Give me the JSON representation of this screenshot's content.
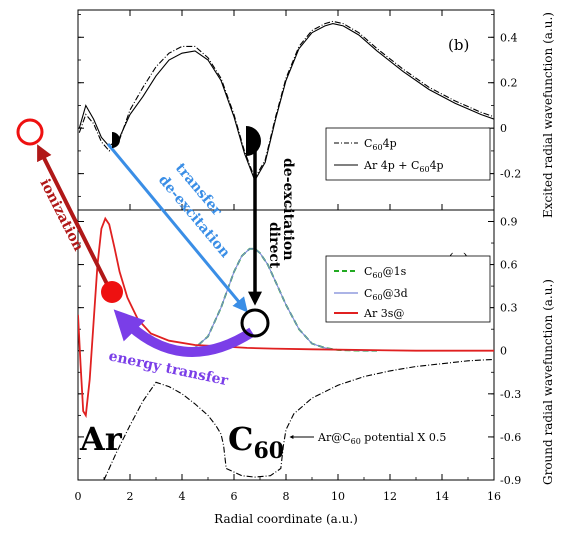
{
  "chart_data": [
    {
      "panel": "(b)",
      "type": "line",
      "xlabel": "Radial coordinate (a.u.)",
      "ylabel": "Excited radial wavefunction (a.u.)",
      "xlim": [
        0,
        16
      ],
      "ylim": [
        -0.36,
        0.52
      ],
      "yticks": [
        -0.2,
        0,
        0.2,
        0.4
      ],
      "ytick_labels": [
        "-0.2",
        "0",
        "0.2",
        "0.4"
      ],
      "legend_position": "center-right",
      "series": [
        {
          "name": "C60 4p",
          "legend_main": "C",
          "legend_sub": "60",
          "legend_rest": "4p",
          "style": "dash-dot",
          "color": "#000000",
          "x": [
            0.05,
            0.3,
            0.6,
            0.9,
            1.2,
            1.6,
            2.0,
            2.5,
            3.0,
            3.5,
            4.0,
            4.5,
            5.0,
            5.5,
            6.0,
            6.4,
            6.8,
            7.2,
            7.6,
            8.0,
            8.5,
            9.0,
            9.5,
            9.8,
            10.2,
            10.8,
            11.5,
            12.5,
            13.5,
            14.5,
            15.5,
            16.0
          ],
          "y": [
            -0.02,
            0.06,
            0.02,
            -0.06,
            -0.1,
            -0.05,
            0.08,
            0.18,
            0.27,
            0.33,
            0.36,
            0.36,
            0.31,
            0.22,
            0.06,
            -0.1,
            -0.22,
            -0.14,
            0.05,
            0.22,
            0.36,
            0.43,
            0.46,
            0.47,
            0.46,
            0.42,
            0.35,
            0.26,
            0.18,
            0.12,
            0.07,
            0.05
          ]
        },
        {
          "name": "Ar 4p + C60 4p",
          "legend_main": "Ar 4p + C",
          "legend_sub": "60",
          "legend_rest": "4p",
          "style": "solid",
          "color": "#000000",
          "x": [
            0.05,
            0.3,
            0.6,
            0.9,
            1.2,
            1.6,
            2.0,
            2.5,
            3.0,
            3.5,
            4.0,
            4.5,
            5.0,
            5.5,
            6.0,
            6.4,
            6.8,
            7.2,
            7.6,
            8.0,
            8.5,
            9.0,
            9.5,
            9.8,
            10.2,
            10.8,
            11.5,
            12.5,
            13.5,
            14.5,
            15.5,
            16.0
          ],
          "y": [
            0.0,
            0.1,
            0.04,
            -0.04,
            -0.08,
            -0.04,
            0.06,
            0.14,
            0.23,
            0.3,
            0.33,
            0.34,
            0.3,
            0.21,
            0.05,
            -0.11,
            -0.23,
            -0.15,
            0.04,
            0.21,
            0.35,
            0.42,
            0.45,
            0.46,
            0.45,
            0.41,
            0.34,
            0.25,
            0.17,
            0.11,
            0.06,
            0.04
          ]
        }
      ]
    },
    {
      "panel": "(a)",
      "type": "line",
      "xlabel": "Radial coordinate (a.u.)",
      "ylabel": "Ground radial wavefunction (a.u.)",
      "xlim": [
        0,
        16
      ],
      "ylim": [
        -0.9,
        0.98
      ],
      "yticks": [
        -0.9,
        -0.6,
        -0.3,
        0,
        0.3,
        0.6,
        0.9
      ],
      "ytick_labels": [
        "-0.9",
        "-0.6",
        "-0.3",
        "0",
        "0.3",
        "0.6",
        "0.9"
      ],
      "xticks": [
        0,
        2,
        4,
        6,
        8,
        10,
        12,
        14,
        16
      ],
      "xtick_labels": [
        "0",
        "2",
        "4",
        "6",
        "8",
        "10",
        "12",
        "14",
        "16"
      ],
      "legend_position": "center-right",
      "series": [
        {
          "name": "C60@1s",
          "legend_main": "C",
          "legend_sub": "60",
          "legend_rest": "@1s",
          "style": "dashed",
          "color": "#22aa22",
          "x": [
            4.0,
            4.5,
            5.0,
            5.5,
            6.0,
            6.3,
            6.6,
            6.8,
            7.0,
            7.3,
            7.6,
            8.0,
            8.5,
            9.0,
            9.5,
            10.0,
            11.0,
            11.5
          ],
          "y": [
            0.0,
            0.02,
            0.1,
            0.3,
            0.55,
            0.66,
            0.71,
            0.71,
            0.68,
            0.6,
            0.48,
            0.32,
            0.15,
            0.05,
            0.02,
            0.005,
            0.0,
            0.0
          ]
        },
        {
          "name": "C60@3d",
          "legend_main": "C",
          "legend_sub": "60",
          "legend_rest": "@3d",
          "style": "solid",
          "color": "#7a86d8",
          "x": [
            4.0,
            4.5,
            5.0,
            5.5,
            6.0,
            6.3,
            6.6,
            6.8,
            7.0,
            7.3,
            7.6,
            8.0,
            8.5,
            9.0,
            9.5,
            10.0,
            11.0,
            11.5
          ],
          "y": [
            0.0,
            0.02,
            0.1,
            0.3,
            0.55,
            0.66,
            0.71,
            0.71,
            0.68,
            0.6,
            0.48,
            0.32,
            0.15,
            0.05,
            0.02,
            0.005,
            0.0,
            0.0
          ]
        },
        {
          "name": "Ar 3s@",
          "legend_main": "Ar 3s@",
          "legend_sub": "",
          "legend_rest": "",
          "style": "solid",
          "color": "#e02020",
          "x": [
            0.0,
            0.1,
            0.2,
            0.3,
            0.45,
            0.6,
            0.75,
            0.9,
            1.05,
            1.2,
            1.4,
            1.6,
            1.9,
            2.3,
            2.8,
            3.5,
            4.5,
            5.5,
            6.5,
            7.5,
            9.0,
            11.0,
            13.0,
            15.0,
            16.0
          ],
          "y": [
            0.25,
            -0.1,
            -0.42,
            -0.45,
            -0.2,
            0.2,
            0.6,
            0.85,
            0.92,
            0.88,
            0.72,
            0.55,
            0.37,
            0.22,
            0.12,
            0.07,
            0.04,
            0.03,
            0.02,
            0.015,
            0.01,
            0.005,
            0.0,
            0.0,
            0.0
          ]
        },
        {
          "name": "Ar@C60 potential X 0.5",
          "style": "dash-dot",
          "color": "#000000",
          "x": [
            1.0,
            1.5,
            2.0,
            2.5,
            3.0,
            3.5,
            4.0,
            4.5,
            5.0,
            5.3,
            5.5,
            5.6,
            5.7,
            6.3,
            6.8,
            7.4,
            7.8,
            7.9,
            8.0,
            8.3,
            9.0,
            10.0,
            11.0,
            12.0,
            13.0,
            14.0,
            15.0,
            16.0
          ],
          "y": [
            -0.9,
            -0.7,
            -0.52,
            -0.35,
            -0.22,
            -0.25,
            -0.3,
            -0.37,
            -0.45,
            -0.52,
            -0.58,
            -0.66,
            -0.82,
            -0.87,
            -0.88,
            -0.87,
            -0.82,
            -0.66,
            -0.55,
            -0.44,
            -0.33,
            -0.24,
            -0.18,
            -0.14,
            -0.11,
            -0.09,
            -0.07,
            -0.06
          ]
        }
      ]
    }
  ],
  "labels": {
    "panel_b": "(b)",
    "panel_a": "(a)",
    "x_axis": "Radial coordinate (a.u.)",
    "y_axis_top": "Excited radial wavefunction (a.u.)",
    "y_axis_bottom": "Ground radial wavefunction (a.u.)",
    "ar": "Ar",
    "c": "C",
    "c_sub": "60",
    "potential_main": "Ar@C",
    "potential_sub": "60",
    "potential_rest": " potential X 0.5",
    "ionization": "ionization",
    "transfer": "transfer",
    "de_excitation": "de-excitation",
    "direct": "direct",
    "energy_transfer": "energy transfer"
  },
  "colors": {
    "ionization_arrow": "#b01818",
    "transfer_arrow": "#3a8ee6",
    "direct_arrow": "#000000",
    "energy_transfer_arrow": "#7a3ee8",
    "ar_dot": "#ee1111",
    "ionized_circle": "#ee1111"
  }
}
